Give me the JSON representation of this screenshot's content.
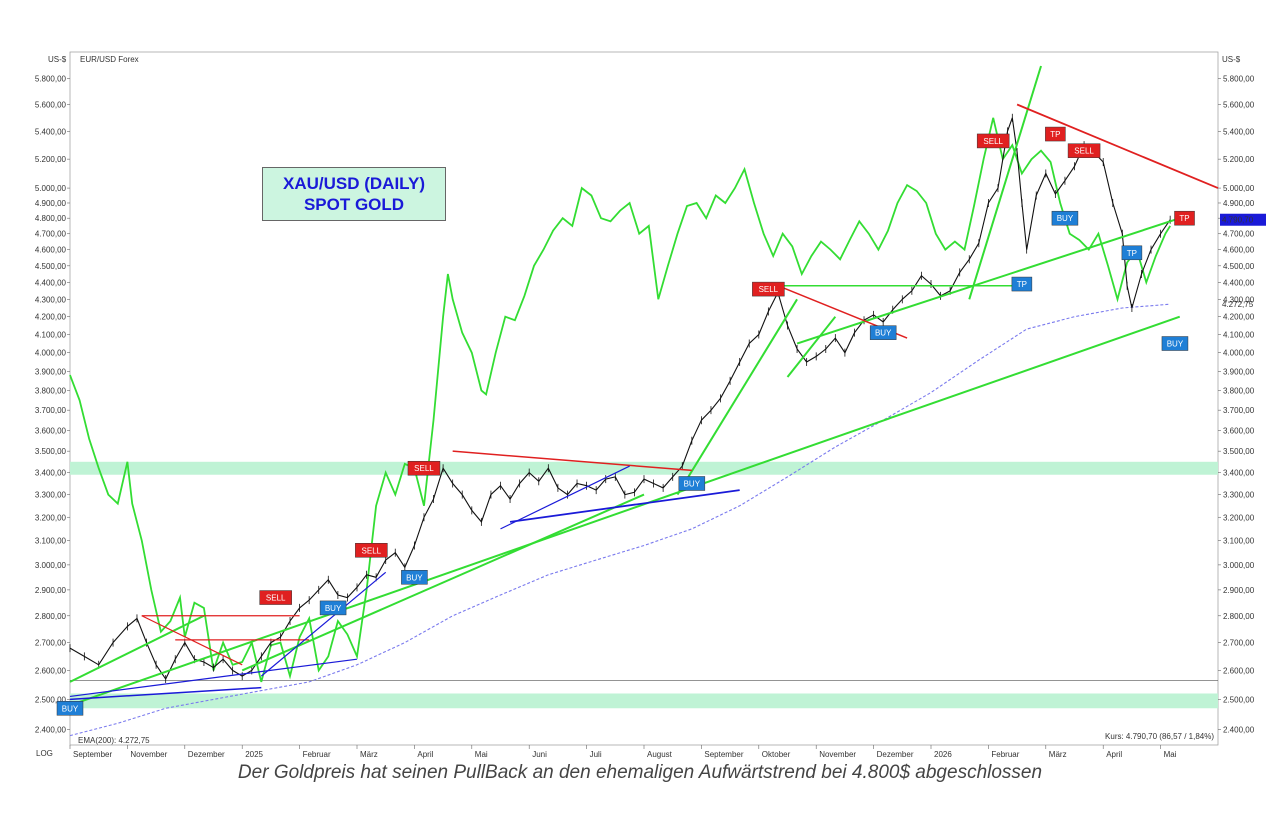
{
  "chart_data": {
    "type": "line",
    "title": "XAU/USD (DAILY)",
    "subtitle": "SPOT GOLD",
    "unit_left": "US-$",
    "unit_right": "US-$",
    "overlay_label": "EUR/USD Forex",
    "log_label": "LOG",
    "ema_label": "EMA(200): 4.272,75",
    "last_price_label": "Kurs: 4.790,70 (86,57 / 1,84%)",
    "last_price_tag": "4.790,70",
    "ema_tag": "4.272,75",
    "y_scale": "log",
    "ylim": [
      2350,
      5900
    ],
    "y_ticks": [
      2400,
      2500,
      2600,
      2700,
      2800,
      2900,
      3000,
      3100,
      3200,
      3300,
      3400,
      3500,
      3600,
      3700,
      3800,
      3900,
      4000,
      4100,
      4200,
      4300,
      4400,
      4500,
      4600,
      4700,
      4800,
      4900,
      5000,
      5200,
      5400,
      5600,
      5800
    ],
    "y_tick_labels": [
      "2.400,00",
      "2.500,00",
      "2.600,00",
      "2.700,00",
      "2.800,00",
      "2.900,00",
      "3.000,00",
      "3.100,00",
      "3.200,00",
      "3.300,00",
      "3.400,00",
      "3.500,00",
      "3.600,00",
      "3.700,00",
      "3.800,00",
      "3.900,00",
      "4.000,00",
      "4.100,00",
      "4.200,00",
      "4.300,00",
      "4.400,00",
      "4.500,00",
      "4.600,00",
      "4.700,00",
      "4.800,00",
      "4.900,00",
      "5.000,00",
      "5.200,00",
      "5.400,00",
      "5.600,00",
      "5.800,00"
    ],
    "x_labels": [
      "September",
      "November",
      "Dezember",
      "2025",
      "Februar",
      "März",
      "April",
      "Mai",
      "Juni",
      "Juli",
      "August",
      "September",
      "Oktober",
      "November",
      "Dezember",
      "2026",
      "Februar",
      "März",
      "April",
      "Mai"
    ],
    "gold_path": [
      [
        0,
        2680
      ],
      [
        3,
        2650
      ],
      [
        6,
        2620
      ],
      [
        9,
        2700
      ],
      [
        12,
        2760
      ],
      [
        14,
        2790
      ],
      [
        16,
        2700
      ],
      [
        18,
        2620
      ],
      [
        20,
        2570
      ],
      [
        22,
        2640
      ],
      [
        24,
        2700
      ],
      [
        26,
        2640
      ],
      [
        28,
        2630
      ],
      [
        30,
        2610
      ],
      [
        32,
        2640
      ],
      [
        34,
        2600
      ],
      [
        36,
        2580
      ],
      [
        38,
        2600
      ],
      [
        40,
        2650
      ],
      [
        42,
        2700
      ],
      [
        44,
        2720
      ],
      [
        46,
        2780
      ],
      [
        48,
        2830
      ],
      [
        50,
        2860
      ],
      [
        52,
        2900
      ],
      [
        54,
        2940
      ],
      [
        56,
        2880
      ],
      [
        58,
        2870
      ],
      [
        60,
        2910
      ],
      [
        62,
        2960
      ],
      [
        64,
        2950
      ],
      [
        66,
        3020
      ],
      [
        68,
        3050
      ],
      [
        70,
        2990
      ],
      [
        72,
        3080
      ],
      [
        74,
        3200
      ],
      [
        76,
        3280
      ],
      [
        78,
        3420
      ],
      [
        80,
        3350
      ],
      [
        82,
        3300
      ],
      [
        84,
        3230
      ],
      [
        86,
        3180
      ],
      [
        88,
        3300
      ],
      [
        90,
        3340
      ],
      [
        92,
        3280
      ],
      [
        94,
        3350
      ],
      [
        96,
        3400
      ],
      [
        98,
        3360
      ],
      [
        100,
        3420
      ],
      [
        102,
        3330
      ],
      [
        104,
        3300
      ],
      [
        106,
        3350
      ],
      [
        108,
        3340
      ],
      [
        110,
        3320
      ],
      [
        112,
        3370
      ],
      [
        114,
        3380
      ],
      [
        116,
        3300
      ],
      [
        118,
        3310
      ],
      [
        120,
        3370
      ],
      [
        122,
        3350
      ],
      [
        124,
        3330
      ],
      [
        126,
        3380
      ],
      [
        128,
        3430
      ],
      [
        130,
        3550
      ],
      [
        132,
        3650
      ],
      [
        134,
        3700
      ],
      [
        136,
        3760
      ],
      [
        138,
        3850
      ],
      [
        140,
        3950
      ],
      [
        142,
        4050
      ],
      [
        144,
        4100
      ],
      [
        146,
        4230
      ],
      [
        148,
        4340
      ],
      [
        150,
        4150
      ],
      [
        152,
        4020
      ],
      [
        154,
        3950
      ],
      [
        156,
        3980
      ],
      [
        158,
        4020
      ],
      [
        160,
        4080
      ],
      [
        162,
        4000
      ],
      [
        164,
        4110
      ],
      [
        166,
        4180
      ],
      [
        168,
        4210
      ],
      [
        170,
        4170
      ],
      [
        172,
        4240
      ],
      [
        174,
        4300
      ],
      [
        176,
        4350
      ],
      [
        178,
        4440
      ],
      [
        180,
        4390
      ],
      [
        182,
        4320
      ],
      [
        184,
        4350
      ],
      [
        186,
        4460
      ],
      [
        188,
        4540
      ],
      [
        190,
        4640
      ],
      [
        192,
        4900
      ],
      [
        194,
        5000
      ],
      [
        196,
        5400
      ],
      [
        197,
        5500
      ],
      [
        198,
        5250
      ],
      [
        199,
        4900
      ],
      [
        200,
        4600
      ],
      [
        202,
        4950
      ],
      [
        204,
        5100
      ],
      [
        206,
        4960
      ],
      [
        208,
        5050
      ],
      [
        210,
        5150
      ],
      [
        212,
        5300
      ],
      [
        214,
        5250
      ],
      [
        216,
        5180
      ],
      [
        218,
        4900
      ],
      [
        220,
        4700
      ],
      [
        221,
        4380
      ],
      [
        222,
        4250
      ],
      [
        224,
        4450
      ],
      [
        226,
        4600
      ],
      [
        228,
        4700
      ],
      [
        230,
        4790
      ]
    ],
    "eurusd_path": [
      [
        0,
        3880
      ],
      [
        2,
        3750
      ],
      [
        4,
        3560
      ],
      [
        6,
        3420
      ],
      [
        8,
        3300
      ],
      [
        10,
        3260
      ],
      [
        12,
        3450
      ],
      [
        13,
        3260
      ],
      [
        15,
        3100
      ],
      [
        17,
        2900
      ],
      [
        19,
        2740
      ],
      [
        21,
        2780
      ],
      [
        23,
        2870
      ],
      [
        24,
        2720
      ],
      [
        26,
        2850
      ],
      [
        28,
        2830
      ],
      [
        30,
        2600
      ],
      [
        32,
        2700
      ],
      [
        34,
        2620
      ],
      [
        36,
        2630
      ],
      [
        38,
        2700
      ],
      [
        40,
        2560
      ],
      [
        42,
        2690
      ],
      [
        44,
        2700
      ],
      [
        46,
        2580
      ],
      [
        48,
        2720
      ],
      [
        50,
        2790
      ],
      [
        52,
        2600
      ],
      [
        54,
        2650
      ],
      [
        56,
        2780
      ],
      [
        58,
        2730
      ],
      [
        60,
        2650
      ],
      [
        62,
        2900
      ],
      [
        64,
        3250
      ],
      [
        66,
        3400
      ],
      [
        68,
        3300
      ],
      [
        70,
        3440
      ],
      [
        72,
        3420
      ],
      [
        74,
        3250
      ],
      [
        76,
        3650
      ],
      [
        78,
        4200
      ],
      [
        79,
        4450
      ],
      [
        80,
        4300
      ],
      [
        82,
        4110
      ],
      [
        84,
        4000
      ],
      [
        86,
        3800
      ],
      [
        87,
        3780
      ],
      [
        89,
        4000
      ],
      [
        91,
        4200
      ],
      [
        93,
        4180
      ],
      [
        95,
        4320
      ],
      [
        97,
        4500
      ],
      [
        99,
        4600
      ],
      [
        101,
        4720
      ],
      [
        103,
        4800
      ],
      [
        105,
        4750
      ],
      [
        107,
        5000
      ],
      [
        109,
        4950
      ],
      [
        111,
        4800
      ],
      [
        113,
        4780
      ],
      [
        115,
        4850
      ],
      [
        117,
        4900
      ],
      [
        119,
        4700
      ],
      [
        121,
        4750
      ],
      [
        123,
        4300
      ],
      [
        125,
        4500
      ],
      [
        127,
        4700
      ],
      [
        129,
        4880
      ],
      [
        131,
        4900
      ],
      [
        133,
        4800
      ],
      [
        135,
        4950
      ],
      [
        137,
        4900
      ],
      [
        139,
        5000
      ],
      [
        141,
        5130
      ],
      [
        143,
        4900
      ],
      [
        145,
        4700
      ],
      [
        147,
        4560
      ],
      [
        149,
        4700
      ],
      [
        151,
        4620
      ],
      [
        153,
        4450
      ],
      [
        155,
        4560
      ],
      [
        157,
        4650
      ],
      [
        159,
        4600
      ],
      [
        161,
        4540
      ],
      [
        163,
        4660
      ],
      [
        165,
        4780
      ],
      [
        167,
        4700
      ],
      [
        169,
        4600
      ],
      [
        171,
        4720
      ],
      [
        173,
        4900
      ],
      [
        175,
        5020
      ],
      [
        177,
        4980
      ],
      [
        179,
        4900
      ],
      [
        181,
        4700
      ],
      [
        183,
        4600
      ],
      [
        185,
        4650
      ],
      [
        187,
        4600
      ],
      [
        189,
        4880
      ],
      [
        191,
        5200
      ],
      [
        193,
        5500
      ],
      [
        195,
        5200
      ],
      [
        197,
        5300
      ],
      [
        199,
        5100
      ],
      [
        201,
        5200
      ],
      [
        203,
        5260
      ],
      [
        205,
        5180
      ],
      [
        207,
        4900
      ],
      [
        209,
        4700
      ],
      [
        211,
        4660
      ],
      [
        213,
        4600
      ],
      [
        215,
        4700
      ],
      [
        217,
        4500
      ],
      [
        219,
        4300
      ],
      [
        221,
        4520
      ],
      [
        223,
        4600
      ],
      [
        225,
        4400
      ],
      [
        227,
        4560
      ],
      [
        229,
        4700
      ],
      [
        230,
        4750
      ]
    ],
    "ema_path": [
      [
        0,
        2380
      ],
      [
        10,
        2420
      ],
      [
        20,
        2470
      ],
      [
        30,
        2500
      ],
      [
        40,
        2530
      ],
      [
        50,
        2560
      ],
      [
        60,
        2620
      ],
      [
        70,
        2700
      ],
      [
        80,
        2800
      ],
      [
        90,
        2880
      ],
      [
        100,
        2960
      ],
      [
        110,
        3020
      ],
      [
        120,
        3080
      ],
      [
        130,
        3150
      ],
      [
        140,
        3250
      ],
      [
        150,
        3380
      ],
      [
        160,
        3520
      ],
      [
        170,
        3650
      ],
      [
        180,
        3790
      ],
      [
        190,
        3960
      ],
      [
        200,
        4130
      ],
      [
        210,
        4200
      ],
      [
        220,
        4250
      ],
      [
        230,
        4272
      ]
    ],
    "signals": [
      {
        "label": "BUY",
        "x": 0,
        "price": 2470,
        "color": "#1f7fd6"
      },
      {
        "label": "SELL",
        "x": 43,
        "price": 2870,
        "color": "#e02020"
      },
      {
        "label": "BUY",
        "x": 55,
        "price": 2830,
        "color": "#1f7fd6"
      },
      {
        "label": "SELL",
        "x": 63,
        "price": 3060,
        "color": "#e02020"
      },
      {
        "label": "BUY",
        "x": 72,
        "price": 2950,
        "color": "#1f7fd6"
      },
      {
        "label": "SELL",
        "x": 74,
        "price": 3420,
        "color": "#e02020"
      },
      {
        "label": "BUY",
        "x": 130,
        "price": 3350,
        "color": "#1f7fd6"
      },
      {
        "label": "SELL",
        "x": 146,
        "price": 4360,
        "color": "#e02020"
      },
      {
        "label": "BUY",
        "x": 170,
        "price": 4110,
        "color": "#1f7fd6"
      },
      {
        "label": "SELL",
        "x": 193,
        "price": 5330,
        "color": "#e02020"
      },
      {
        "label": "TP",
        "x": 199,
        "price": 4390,
        "color": "#1f7fd6"
      },
      {
        "label": "TP",
        "x": 206,
        "price": 5380,
        "color": "#e02020"
      },
      {
        "label": "SELL",
        "x": 212,
        "price": 5260,
        "color": "#e02020"
      },
      {
        "label": "BUY",
        "x": 208,
        "price": 4800,
        "color": "#1f7fd6"
      },
      {
        "label": "TP",
        "x": 222,
        "price": 4580,
        "color": "#1f7fd6"
      },
      {
        "label": "TP",
        "x": 233,
        "price": 4800,
        "color": "#e02020"
      },
      {
        "label": "BUY",
        "x": 231,
        "price": 4050,
        "color": "#1f7fd6"
      }
    ],
    "caption": "Der Goldpreis hat seinen PullBack an den ehemaligen Aufwärtstrend bei 4.800$ abgeschlossen"
  },
  "colors": {
    "gold": "#111111",
    "eurusd": "#33dd33",
    "ema": "#7a7aee",
    "support_zone": "#bff3d5",
    "trend_green": "#33dd33",
    "trend_red": "#e02020",
    "trend_blue": "#1a1ad8",
    "buy": "#1f7fd6",
    "sell": "#e02020"
  }
}
